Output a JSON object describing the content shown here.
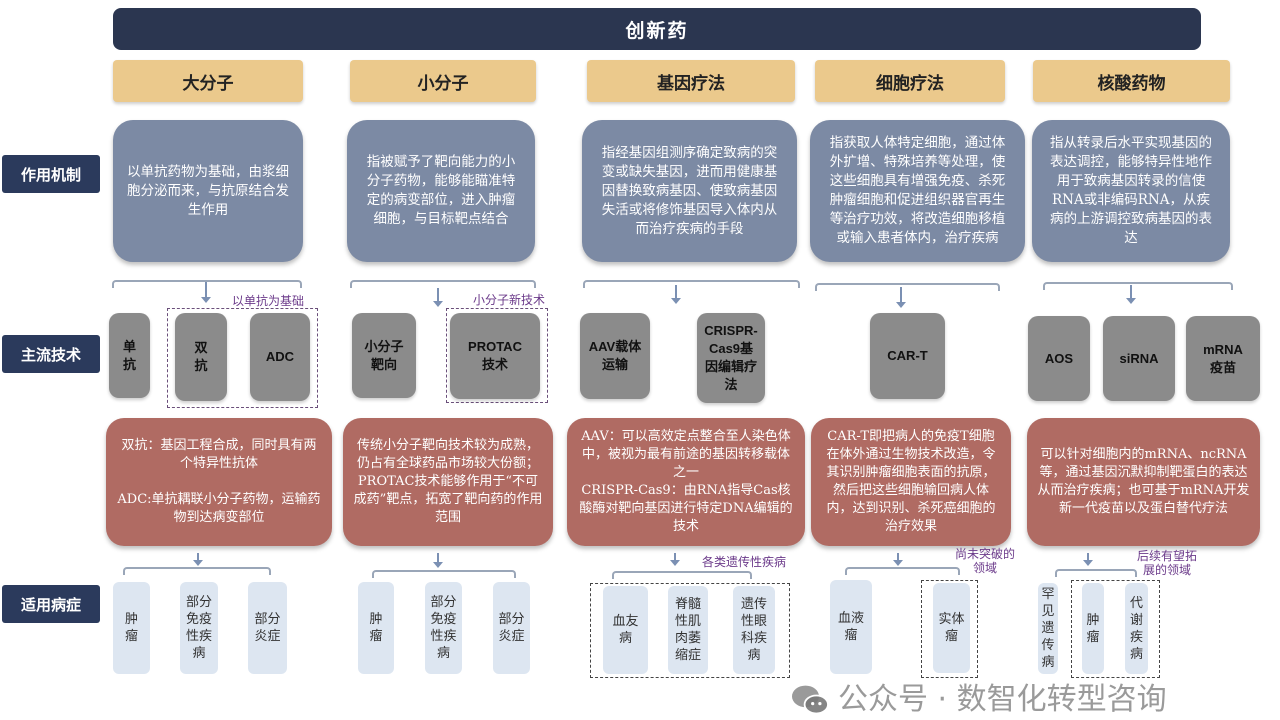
{
  "title": "创新药",
  "headers": [
    "大分子",
    "小分子",
    "基因疗法",
    "细胞疗法",
    "核酸药物"
  ],
  "row_labels": {
    "mechanism": "作用机制",
    "technology": "主流技术",
    "indication": "适用病症"
  },
  "mechanism": [
    "以单抗药物为基础，由浆细胞分泌而来，与抗原结合发生作用",
    "指被赋予了靶向能力的小分子药物，能够能瞄准特定的病变部位，进入肿瘤细胞，与目标靶点结合",
    "指经基因组测序确定致病的突变或缺失基因，进而用健康基因替换致病基因、使致病基因失活或将修饰基因导入体内从而治疗疾病的手段",
    "指获取人体特定细胞，通过体外扩增、特殊培养等处理，使这些细胞具有增强免疫、杀死肿瘤细胞和促进组织器官再生等治疗功效，将改造细胞移植或输入患者体内，治疗疾病",
    "指从转录后水平实现基因的表达调控，能够特异性地作用于致病基因转录的信使RNA或非编码RNA，从疾病的上游调控致病基因的表达"
  ],
  "technology": {
    "mab": "单抗",
    "bsab": "双抗",
    "adc": "ADC",
    "small_targeted": "小分子靶向",
    "protac": "PROTAC技术",
    "aav": "AAV载体运输",
    "crispr": "CRISPR-Cas9基因编辑疗法",
    "cart": "CAR-T",
    "aos": "AOS",
    "sirna": "siRNA",
    "mrna": "mRNA疫苗",
    "note_mab": "以单抗为基础",
    "note_small": "小分子新技术"
  },
  "descriptions": [
    "双抗：基因工程合成，同时具有两个特异性抗体\n\nADC:单抗耦联小分子药物，运输药物到达病变部位",
    "传统小分子靶向技术较为成熟，仍占有全球药品市场较大份额；PROTAC技术能够作用于“不可成药”靶点，拓宽了靶向药的作用范围",
    "AAV：可以高效定点整合至人染色体中，被视为最有前途的基因转移载体之一\nCRISPR-Cas9：由RNA指导Cas核酸酶对靶向基因进行特定DNA编辑的技术",
    "CAR-T即把病人的免疫T细胞在体外通过生物技术改造，令其识别肿瘤细胞表面的抗原，然后把这些细胞输回病人体内，达到识别、杀死癌细胞的治疗效果",
    "可以针对细胞内的mRNA、ncRNA等，通过基因沉默抑制靶蛋白的表达从而治疗疾病；也可基于mRNA开发新一代疫苗以及蛋白替代疗法"
  ],
  "indications": {
    "c1": [
      "肿\n瘤",
      "部分\n免疫\n性疾\n病",
      "部分\n炎症"
    ],
    "c2": [
      "肿\n瘤",
      "部分\n免疫\n性疾\n病",
      "部分\n炎症"
    ],
    "c3": [
      "血友\n病",
      "脊髓\n性肌\n肉萎\n缩症",
      "遗传\n性眼\n科疾\n病"
    ],
    "c4": [
      "血液\n瘤",
      "实体\n瘤"
    ],
    "c5": [
      "罕\n见\n遗\n传\n病",
      "肿\n瘤",
      "代\n谢\n疾\n病"
    ],
    "note_c3": "各类遗传性疾病",
    "note_c4": "尚未突破的\n领域",
    "note_c5": "后续有望拓\n展的领域"
  },
  "watermark": "公众号 · 数智化转型咨询",
  "colors": {
    "title": "#2b3650",
    "header": "#ebc98c",
    "mechanism": "#7c8aa4",
    "technology": "#8b8b8b",
    "description": "#b06b63",
    "indication": "#dde6f1"
  }
}
